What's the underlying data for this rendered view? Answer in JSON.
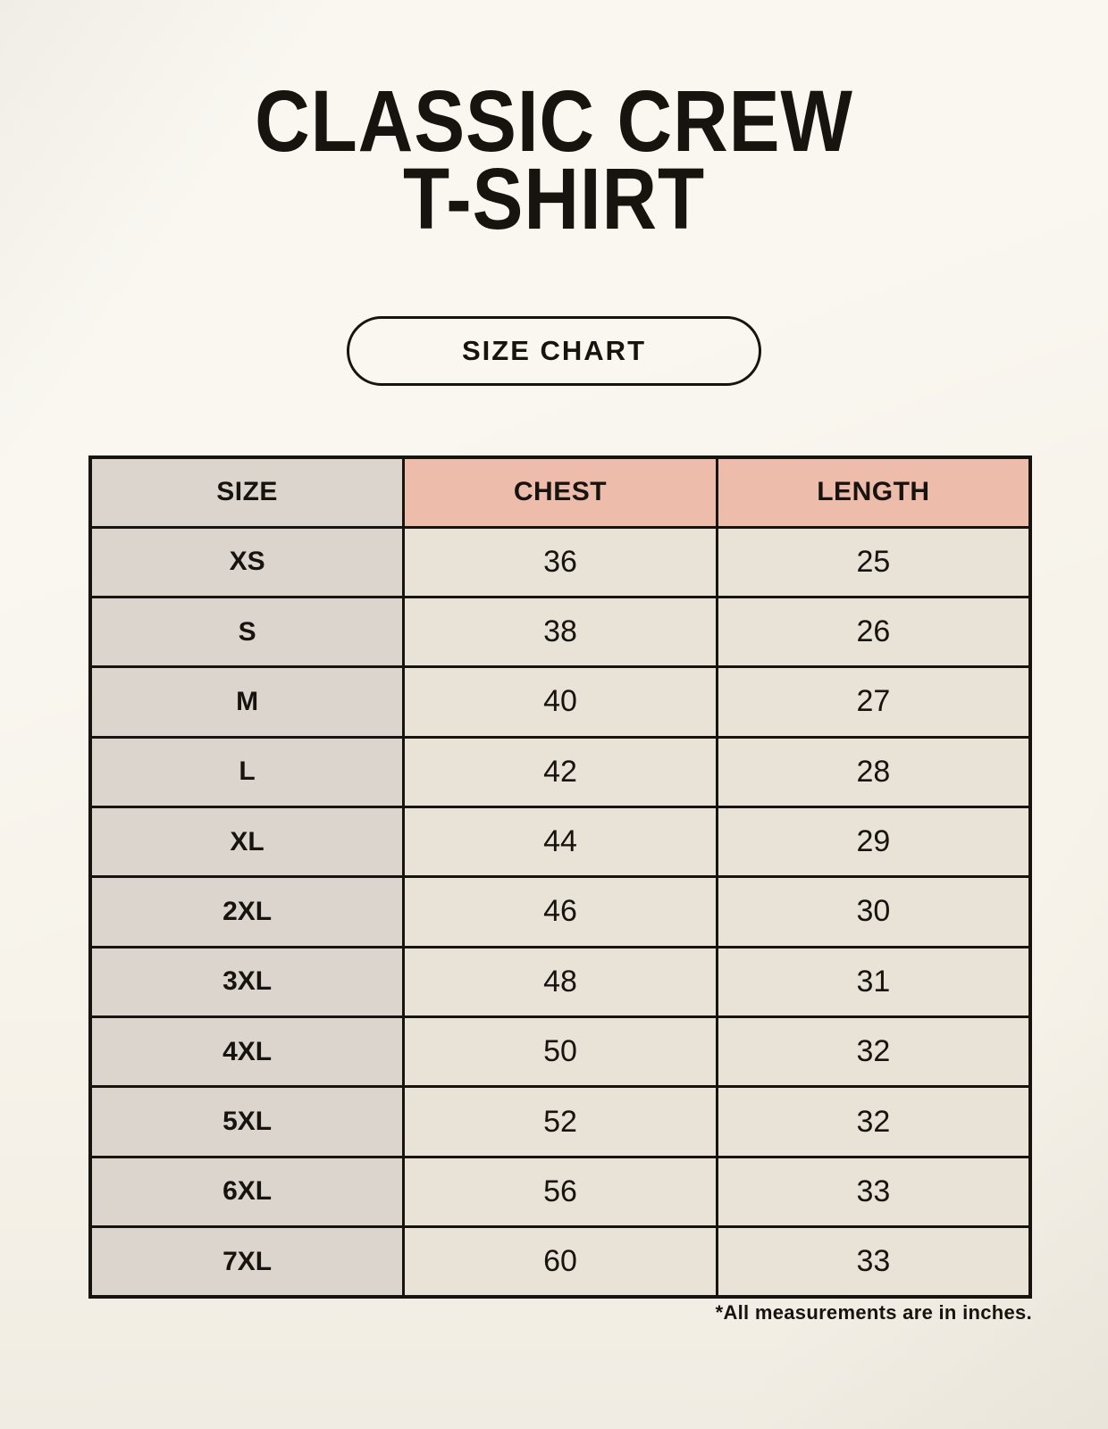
{
  "header": {
    "title_line1": "CLASSIC CREW",
    "title_line2": "T-SHIRT",
    "badge_label": "SIZE CHART"
  },
  "footnote": "*All measurements are in inches.",
  "colors": {
    "page_background": "#f7f3ea",
    "accent_header": "#eebcab",
    "size_column": "#dcd5ce",
    "cell_background": "#e9e2d6",
    "table_border": "#17130e",
    "text": "#17140f"
  },
  "chart_data": {
    "type": "table",
    "title": "SIZE CHART",
    "columns": [
      "SIZE",
      "CHEST",
      "LENGTH"
    ],
    "units": "inches",
    "rows": [
      {
        "SIZE": "XS",
        "CHEST": 36,
        "LENGTH": 25
      },
      {
        "SIZE": "S",
        "CHEST": 38,
        "LENGTH": 26
      },
      {
        "SIZE": "M",
        "CHEST": 40,
        "LENGTH": 27
      },
      {
        "SIZE": "L",
        "CHEST": 42,
        "LENGTH": 28
      },
      {
        "SIZE": "XL",
        "CHEST": 44,
        "LENGTH": 29
      },
      {
        "SIZE": "2XL",
        "CHEST": 46,
        "LENGTH": 30
      },
      {
        "SIZE": "3XL",
        "CHEST": 48,
        "LENGTH": 31
      },
      {
        "SIZE": "4XL",
        "CHEST": 50,
        "LENGTH": 32
      },
      {
        "SIZE": "5XL",
        "CHEST": 52,
        "LENGTH": 32
      },
      {
        "SIZE": "6XL",
        "CHEST": 56,
        "LENGTH": 33
      },
      {
        "SIZE": "7XL",
        "CHEST": 60,
        "LENGTH": 33
      }
    ]
  }
}
